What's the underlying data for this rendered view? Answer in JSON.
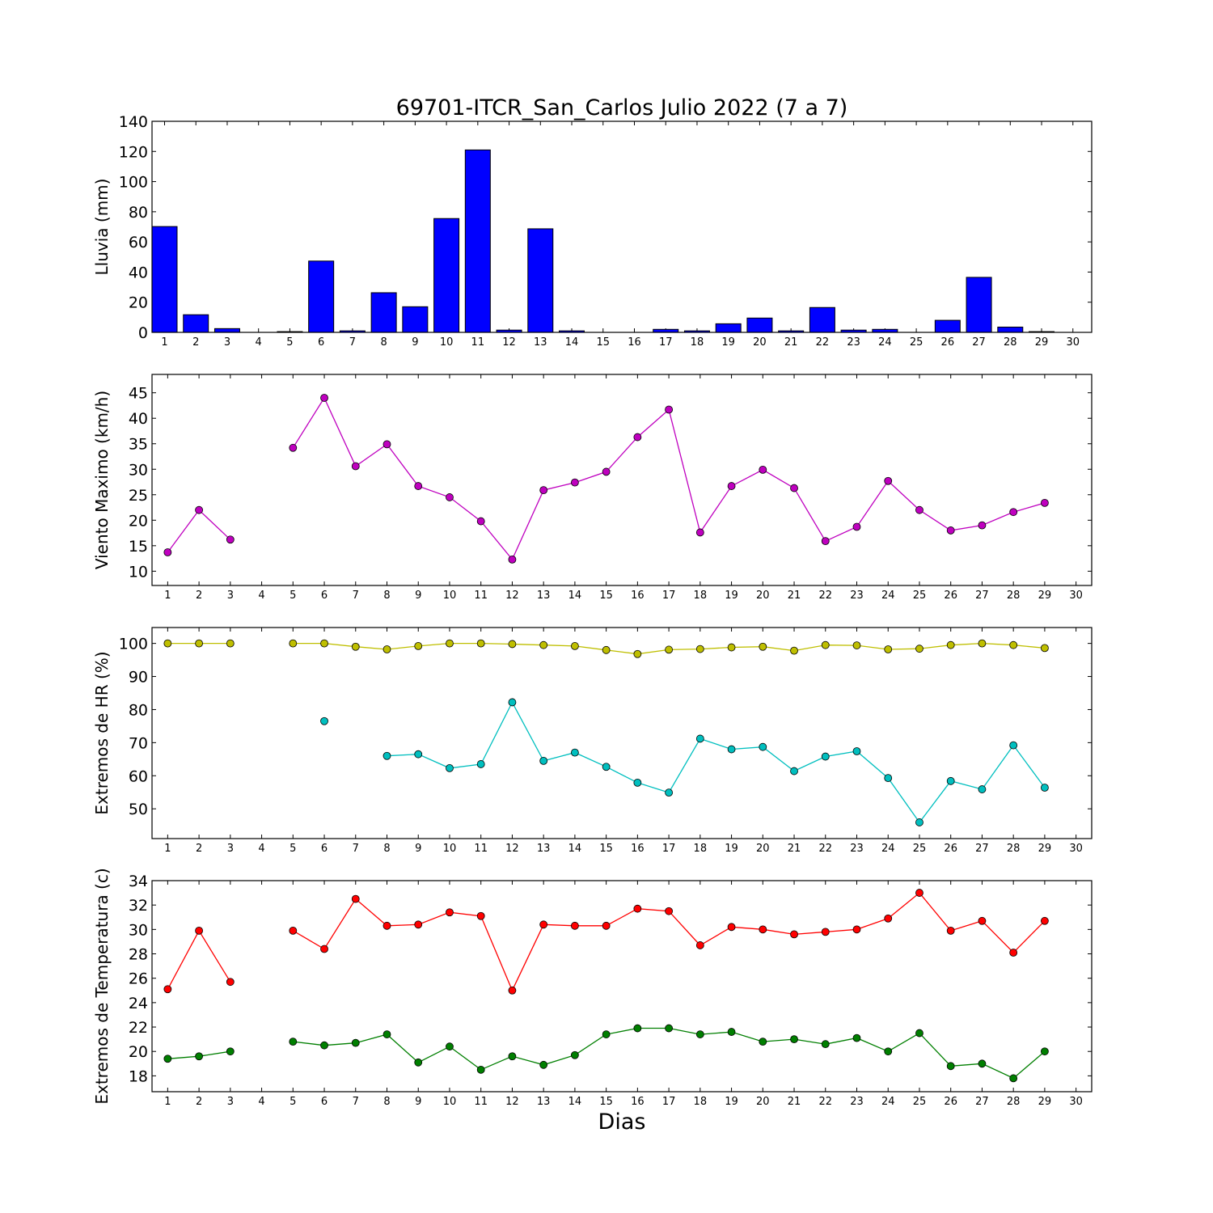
{
  "chart_data": [
    {
      "type": "bar",
      "title": "69701-ITCR_San_Carlos Julio 2022  (7 a 7)",
      "ylabel": "Lluvia (mm)",
      "ylim": [
        0,
        140
      ],
      "yticks": [
        0,
        20,
        40,
        60,
        80,
        100,
        120,
        140
      ],
      "xlim": [
        0.6,
        30.6
      ],
      "xticks": [
        1,
        2,
        3,
        4,
        5,
        6,
        7,
        8,
        9,
        10,
        11,
        12,
        13,
        14,
        15,
        16,
        17,
        18,
        19,
        20,
        21,
        22,
        23,
        24,
        25,
        26,
        27,
        28,
        29,
        30
      ],
      "series": [
        {
          "color": "#0000ff",
          "x": [
            1,
            2,
            3,
            4,
            5,
            6,
            7,
            8,
            9,
            10,
            11,
            12,
            13,
            14,
            15,
            16,
            17,
            18,
            19,
            20,
            21,
            22,
            23,
            24,
            25,
            26,
            27,
            28,
            29
          ],
          "values": [
            70.2,
            11.7,
            2.5,
            0,
            0.5,
            47.3,
            1.0,
            26.3,
            17.0,
            75.5,
            121.0,
            1.5,
            68.7,
            1.0,
            0,
            0,
            2.0,
            1.0,
            5.7,
            9.5,
            1.0,
            16.5,
            1.5,
            2.0,
            0,
            8.0,
            36.5,
            3.5,
            0.5
          ]
        }
      ]
    },
    {
      "type": "line",
      "ylabel": "Viento Maximo (km/h)",
      "ylim": [
        7.2,
        48.6
      ],
      "yticks": [
        10,
        15,
        20,
        25,
        30,
        35,
        40,
        45
      ],
      "xlim": [
        0.5,
        30.5
      ],
      "xticks": [
        1,
        2,
        3,
        4,
        5,
        6,
        7,
        8,
        9,
        10,
        11,
        12,
        13,
        14,
        15,
        16,
        17,
        18,
        19,
        20,
        21,
        22,
        23,
        24,
        25,
        26,
        27,
        28,
        29,
        30
      ],
      "series": [
        {
          "color": "#bf00bf",
          "x": [
            1,
            2,
            3,
            4,
            5,
            6,
            7,
            8,
            9,
            10,
            11,
            12,
            13,
            14,
            15,
            16,
            17,
            18,
            19,
            20,
            21,
            22,
            23,
            24,
            25,
            26,
            27,
            28,
            29
          ],
          "values": [
            13.7,
            22.0,
            16.2,
            null,
            34.2,
            44.0,
            30.6,
            34.9,
            26.7,
            24.5,
            19.8,
            12.3,
            25.9,
            27.4,
            29.5,
            36.3,
            41.7,
            17.6,
            26.7,
            29.9,
            26.3,
            15.9,
            18.7,
            27.7,
            22.0,
            18.0,
            19.0,
            21.6,
            23.4
          ]
        }
      ]
    },
    {
      "type": "line",
      "ylabel": "Extremos de HR (%)",
      "ylim": [
        41,
        104.8
      ],
      "yticks": [
        50,
        60,
        70,
        80,
        90,
        100
      ],
      "xlim": [
        0.5,
        30.5
      ],
      "xticks": [
        1,
        2,
        3,
        4,
        5,
        6,
        7,
        8,
        9,
        10,
        11,
        12,
        13,
        14,
        15,
        16,
        17,
        18,
        19,
        20,
        21,
        22,
        23,
        24,
        25,
        26,
        27,
        28,
        29,
        30
      ],
      "series": [
        {
          "color": "#bfbf00",
          "x": [
            1,
            2,
            3,
            4,
            5,
            6,
            7,
            8,
            9,
            10,
            11,
            12,
            13,
            14,
            15,
            16,
            17,
            18,
            19,
            20,
            21,
            22,
            23,
            24,
            25,
            26,
            27,
            28,
            29
          ],
          "values": [
            100,
            100,
            100,
            null,
            100,
            100,
            99.0,
            98.2,
            99.2,
            100,
            100,
            99.8,
            99.5,
            99.2,
            98.0,
            96.8,
            98.1,
            98.3,
            98.8,
            99.0,
            97.8,
            99.5,
            99.4,
            98.2,
            98.4,
            99.5,
            100,
            99.5,
            98.6
          ]
        },
        {
          "color": "#00bfbf",
          "x": [
            1,
            2,
            3,
            4,
            5,
            6,
            7,
            8,
            9,
            10,
            11,
            12,
            13,
            14,
            15,
            16,
            17,
            18,
            19,
            20,
            21,
            22,
            23,
            24,
            25,
            26,
            27,
            28,
            29
          ],
          "values": [
            null,
            null,
            null,
            null,
            null,
            76.5,
            null,
            66.0,
            66.5,
            62.3,
            63.5,
            82.2,
            64.5,
            67.0,
            62.7,
            57.9,
            54.9,
            71.2,
            68.0,
            68.7,
            61.4,
            65.8,
            67.4,
            59.3,
            45.9,
            58.4,
            55.9,
            69.2,
            56.4
          ]
        }
      ]
    },
    {
      "type": "line",
      "ylabel": "Extremos de Temperatura (c)",
      "xlabel": "Dias",
      "ylim": [
        16.7,
        34
      ],
      "yticks": [
        18,
        20,
        22,
        24,
        26,
        28,
        30,
        32,
        34
      ],
      "xlim": [
        0.5,
        30.5
      ],
      "xticks": [
        1,
        2,
        3,
        4,
        5,
        6,
        7,
        8,
        9,
        10,
        11,
        12,
        13,
        14,
        15,
        16,
        17,
        18,
        19,
        20,
        21,
        22,
        23,
        24,
        25,
        26,
        27,
        28,
        29,
        30
      ],
      "series": [
        {
          "color": "#ff0000",
          "x": [
            1,
            2,
            3,
            4,
            5,
            6,
            7,
            8,
            9,
            10,
            11,
            12,
            13,
            14,
            15,
            16,
            17,
            18,
            19,
            20,
            21,
            22,
            23,
            24,
            25,
            26,
            27,
            28,
            29
          ],
          "values": [
            25.1,
            29.9,
            25.7,
            null,
            29.9,
            28.4,
            32.5,
            30.3,
            30.4,
            31.4,
            31.1,
            25.0,
            30.4,
            30.3,
            30.3,
            31.7,
            31.5,
            28.7,
            30.2,
            30.0,
            29.6,
            29.8,
            30.0,
            30.9,
            33.0,
            29.9,
            30.7,
            28.1,
            30.7
          ]
        },
        {
          "color": "#007f00",
          "x": [
            1,
            2,
            3,
            4,
            5,
            6,
            7,
            8,
            9,
            10,
            11,
            12,
            13,
            14,
            15,
            16,
            17,
            18,
            19,
            20,
            21,
            22,
            23,
            24,
            25,
            26,
            27,
            28,
            29
          ],
          "values": [
            19.4,
            19.6,
            20.0,
            null,
            20.8,
            20.5,
            20.7,
            21.4,
            19.1,
            20.4,
            18.5,
            19.6,
            18.9,
            19.7,
            21.4,
            21.9,
            21.9,
            21.4,
            21.6,
            20.8,
            21.0,
            20.6,
            21.1,
            20.0,
            21.5,
            18.8,
            19.0,
            17.8,
            20.0
          ]
        }
      ]
    }
  ]
}
